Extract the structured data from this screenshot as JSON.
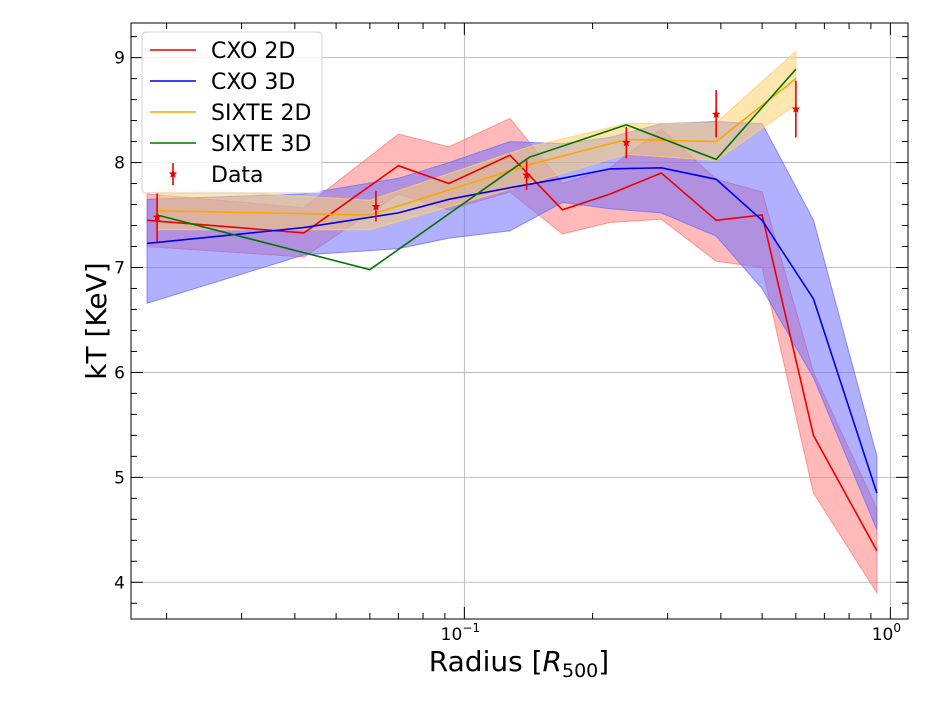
{
  "chart_data": {
    "type": "line",
    "xlabel": "Radius",
    "xlabel_subscript": "500",
    "ylabel": "kT [KeV]",
    "xscale": "log",
    "xlim": [
      0.0165,
      1.1
    ],
    "ylim": [
      3.65,
      9.33
    ],
    "grid": true,
    "legend_position": "top-left",
    "x_tick_labels": [
      {
        "value": 0.1,
        "base": "10",
        "exp": "−1"
      },
      {
        "value": 1.0,
        "base": "10",
        "exp": "0"
      }
    ],
    "y_ticks": [
      4,
      5,
      6,
      7,
      8,
      9
    ],
    "series": [
      {
        "name": "CXO 2D",
        "color": "#ee0000",
        "band_color": "#ff8080",
        "x": [
          0.018,
          0.042,
          0.07,
          0.092,
          0.128,
          0.17,
          0.22,
          0.29,
          0.39,
          0.5,
          0.66,
          0.93
        ],
        "y": [
          7.45,
          7.33,
          7.97,
          7.8,
          8.07,
          7.55,
          7.7,
          7.9,
          7.45,
          7.5,
          5.4,
          4.3
        ],
        "lower": [
          7.2,
          7.1,
          7.7,
          7.55,
          7.72,
          7.32,
          7.43,
          7.46,
          7.06,
          7.0,
          4.85,
          3.9
        ],
        "upper": [
          7.7,
          7.57,
          8.27,
          8.15,
          8.42,
          7.8,
          7.95,
          8.32,
          7.84,
          7.72,
          6.0,
          4.7
        ]
      },
      {
        "name": "CXO 3D",
        "color": "#0000ee",
        "band_color": "#7070ff",
        "x": [
          0.018,
          0.042,
          0.07,
          0.092,
          0.128,
          0.17,
          0.22,
          0.29,
          0.39,
          0.5,
          0.66,
          0.93
        ],
        "y": [
          7.23,
          7.38,
          7.52,
          7.65,
          7.76,
          7.85,
          7.94,
          7.95,
          7.84,
          7.45,
          6.7,
          4.85
        ],
        "lower": [
          6.66,
          7.12,
          7.18,
          7.28,
          7.35,
          7.62,
          7.56,
          7.52,
          7.3,
          6.8,
          5.95,
          4.5
        ],
        "upper": [
          7.65,
          7.7,
          7.85,
          8.0,
          8.2,
          8.18,
          8.24,
          8.37,
          8.39,
          8.37,
          7.45,
          5.2
        ]
      },
      {
        "name": "SIXTE 2D",
        "color": "#ffa500",
        "band_color": "#ffcf70",
        "x": [
          0.019,
          0.06,
          0.142,
          0.24,
          0.39,
          0.6
        ],
        "y": [
          7.54,
          7.5,
          7.98,
          8.22,
          8.2,
          8.8
        ],
        "lower": [
          7.36,
          7.36,
          7.8,
          8.08,
          8.02,
          8.55
        ],
        "upper": [
          7.76,
          7.64,
          8.15,
          8.37,
          8.38,
          9.06
        ]
      },
      {
        "name": "SIXTE 3D",
        "color": "#007500",
        "x": [
          0.019,
          0.06,
          0.142,
          0.24,
          0.39,
          0.6
        ],
        "y": [
          7.5,
          6.98,
          8.05,
          8.36,
          8.03,
          8.89
        ]
      }
    ],
    "data_points": {
      "name": "Data",
      "color": "#ee0000",
      "x": [
        0.019,
        0.062,
        0.14,
        0.24,
        0.39,
        0.6
      ],
      "y": [
        7.48,
        7.58,
        7.88,
        8.19,
        8.46,
        8.51
      ],
      "lower": [
        7.24,
        7.44,
        7.74,
        8.04,
        8.24,
        8.24
      ],
      "upper": [
        7.72,
        7.73,
        8.02,
        8.34,
        8.69,
        8.78
      ]
    }
  }
}
